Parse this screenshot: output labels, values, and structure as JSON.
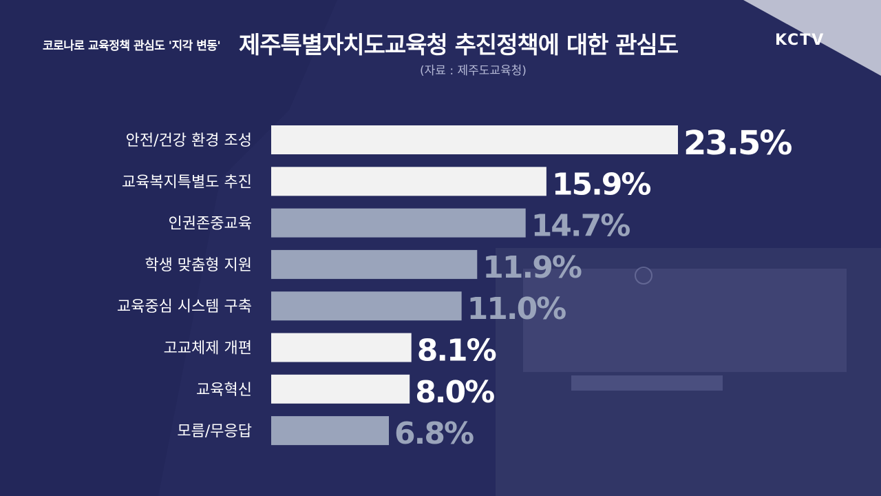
{
  "header": {
    "kicker": "코로나로 교육정책 관심도 '지각 변동'",
    "title": "제주특별자치도교육청 추진정책에 대한 관심도",
    "source": "(자료 : 제주도교육청)",
    "logo": "KCTV"
  },
  "colors": {
    "background": "#262a5e",
    "bar_highlight": "#f2f2f2",
    "bar_muted": "#9aa4bb",
    "label_text": "#ffffff"
  },
  "chart_data": {
    "type": "bar",
    "orientation": "horizontal",
    "title": "제주특별자치도교육청 추진정책에 대한 관심도",
    "categories": [
      "안전/건강 환경 조성",
      "교육복지특별도 추진",
      "인권존중교육",
      "학생 맞춤형 지원",
      "교육중심 시스템 구축",
      "고교체제 개편",
      "교육혁신",
      "모름/무응답"
    ],
    "values": [
      23.5,
      15.9,
      14.7,
      11.9,
      11.0,
      8.1,
      8.0,
      6.8
    ],
    "value_labels": [
      "23.5%",
      "15.9%",
      "14.7%",
      "11.9%",
      "11.0%",
      "8.1%",
      "8.0%",
      "6.8%"
    ],
    "highlight": [
      true,
      true,
      false,
      false,
      false,
      true,
      true,
      false
    ],
    "unit": "%",
    "xlim": [
      0,
      23.5
    ],
    "grid": false,
    "legend": "none"
  }
}
